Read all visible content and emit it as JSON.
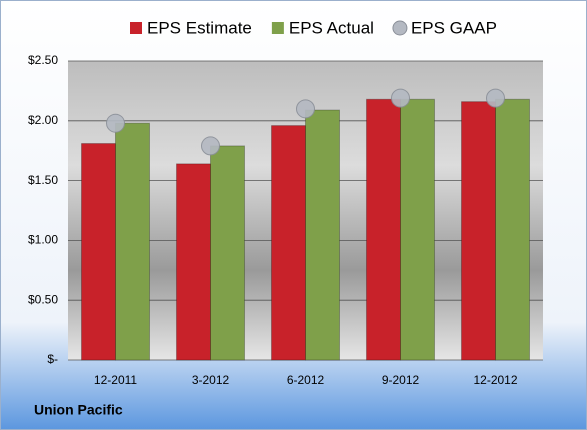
{
  "chart_data": {
    "type": "bar",
    "categories": [
      "12-2011",
      "3-2012",
      "6-2012",
      "9-2012",
      "12-2012"
    ],
    "series": [
      {
        "name": "EPS Estimate",
        "color": "#c8222a",
        "values": [
          1.81,
          1.64,
          1.96,
          2.18,
          2.16
        ]
      },
      {
        "name": "EPS Actual",
        "color": "#7fa04a",
        "values": [
          1.98,
          1.79,
          2.09,
          2.18,
          2.18
        ]
      },
      {
        "name": "EPS GAAP",
        "color": "#b4b9c2",
        "type": "scatter",
        "values": [
          1.98,
          1.79,
          2.1,
          2.19,
          2.19
        ]
      }
    ],
    "ylim": [
      0,
      2.5
    ],
    "yticks": [
      {
        "value": 0,
        "label": "$-"
      },
      {
        "value": 0.5,
        "label": "$0.50"
      },
      {
        "value": 1,
        "label": "$1.00"
      },
      {
        "value": 1.5,
        "label": "$1.50"
      },
      {
        "value": 2,
        "label": "$2.00"
      },
      {
        "value": 2.5,
        "label": "$2.50"
      }
    ],
    "grid": true,
    "legend": "top",
    "source": "Union Pacific"
  }
}
